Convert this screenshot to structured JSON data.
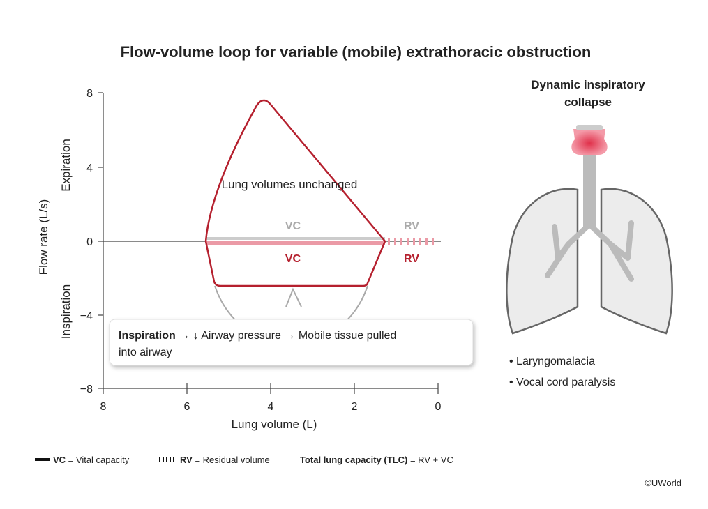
{
  "title": "Flow-volume loop for variable (mobile) extrathoracic obstruction",
  "plot": {
    "y_axis_label": "Flow rate (L/s)",
    "y_region_labels": [
      "Expiration",
      "Inspiration"
    ],
    "y_ticks": [
      "8",
      "4",
      "0",
      "−4",
      "−8"
    ],
    "x_axis_label": "Lung volume (L)",
    "x_ticks": [
      "8",
      "6",
      "4",
      "2",
      "0"
    ],
    "annotation": "Lung volumes unchanged",
    "normal_labels": [
      "VC",
      "RV"
    ],
    "obstructed_labels": [
      "VC",
      "RV"
    ],
    "callout": {
      "bold": "Inspiration",
      "line1": " → ↓ Airway pressure → Mobile tissue pulled",
      "line2": "into airway"
    }
  },
  "illustration": {
    "title_lines": [
      "Dynamic inspiratory",
      "collapse"
    ],
    "bullets": [
      "Laryngomalacia",
      "Vocal cord paralysis"
    ]
  },
  "legend": [
    {
      "key": "VC",
      "text": " = Vital capacity"
    },
    {
      "key": "RV",
      "text": " = Residual volume"
    },
    {
      "key": "Total lung capacity (TLC)",
      "text": " = RV + VC"
    }
  ],
  "credit": "©UWorld"
}
